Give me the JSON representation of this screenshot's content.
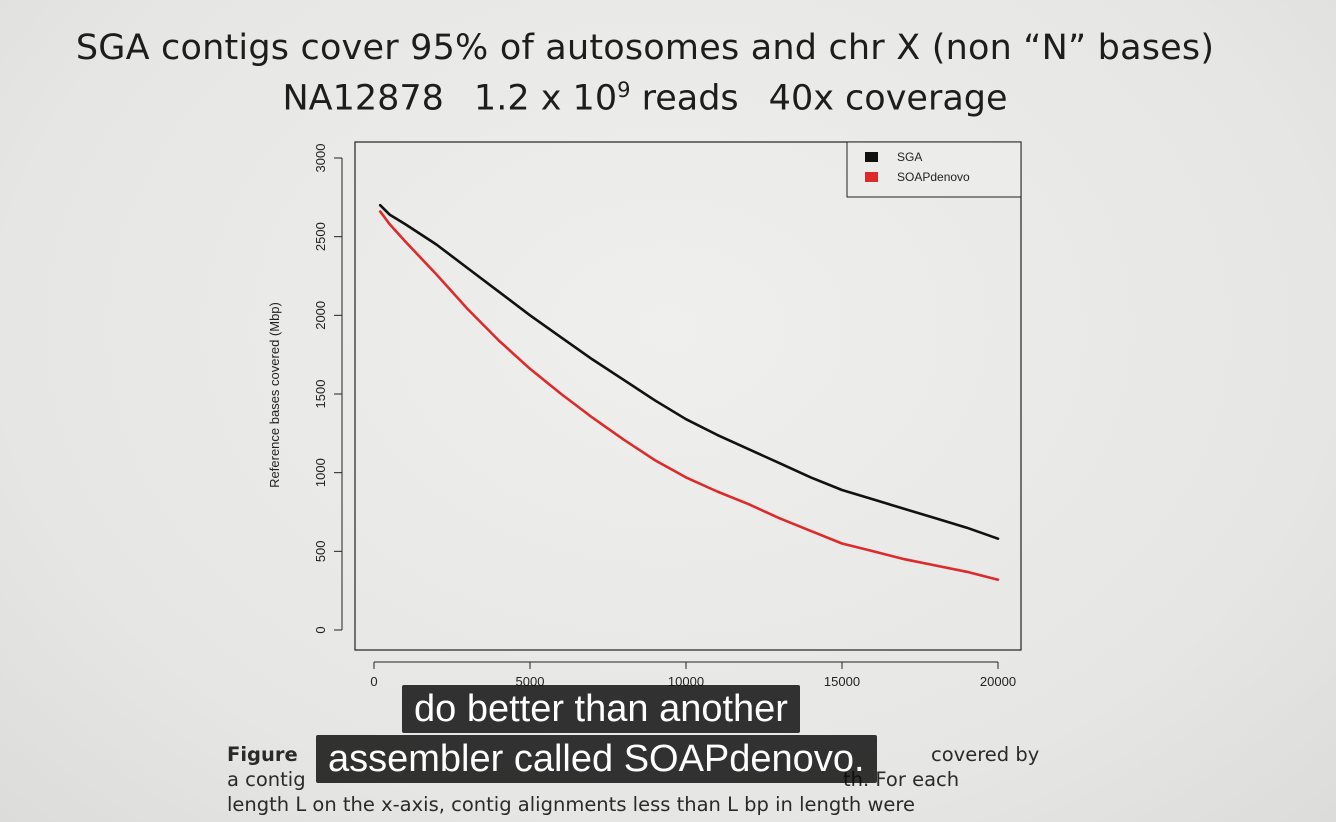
{
  "slide": {
    "title": "SGA contigs cover 95% of autosomes and chr X (non “N” bases)",
    "subtitle_sample": "NA12878",
    "subtitle_reads_base": "1.2 x 10",
    "subtitle_reads_exp": "9",
    "subtitle_reads_word": "reads",
    "subtitle_coverage": "40x coverage"
  },
  "chart_data": {
    "type": "line",
    "title": "",
    "xlabel": "",
    "ylabel": "Reference bases covered (Mbp)",
    "xlim": [
      0,
      20000
    ],
    "ylim": [
      0,
      3000
    ],
    "x_ticks": [
      "0",
      "5000",
      "10000",
      "15000",
      "20000"
    ],
    "y_ticks": [
      "0",
      "500",
      "1000",
      "1500",
      "2000",
      "2500",
      "3000"
    ],
    "legend_position": "top-right",
    "grid": false,
    "series": [
      {
        "name": "SGA",
        "color": "#111111",
        "x": [
          200,
          500,
          1000,
          2000,
          3000,
          4000,
          5000,
          6000,
          7000,
          8000,
          9000,
          10000,
          11000,
          12000,
          13000,
          14000,
          15000,
          16000,
          17000,
          18000,
          19000,
          20000
        ],
        "y": [
          2700,
          2640,
          2580,
          2450,
          2300,
          2150,
          2000,
          1860,
          1720,
          1590,
          1460,
          1340,
          1240,
          1150,
          1060,
          970,
          890,
          830,
          770,
          710,
          650,
          580
        ]
      },
      {
        "name": "SOAPdenovo",
        "color": "#dd2a2a",
        "x": [
          200,
          500,
          1000,
          2000,
          3000,
          4000,
          5000,
          6000,
          7000,
          8000,
          9000,
          10000,
          11000,
          12000,
          13000,
          14000,
          15000,
          16000,
          17000,
          18000,
          19000,
          20000
        ],
        "y": [
          2660,
          2580,
          2470,
          2260,
          2040,
          1840,
          1660,
          1500,
          1350,
          1210,
          1080,
          970,
          880,
          800,
          710,
          630,
          550,
          500,
          450,
          410,
          370,
          320
        ]
      }
    ]
  },
  "caption": {
    "line1_bold": "Figure",
    "line1_visible_right": "covered by",
    "line2_left": "a contig",
    "line2_right": "th. For each",
    "line3": "length L on the x-axis, contig alignments less than L bp in length were"
  },
  "video_subtitles": {
    "line1": "do better than another",
    "line2": "assembler called SOAPdenovo."
  }
}
